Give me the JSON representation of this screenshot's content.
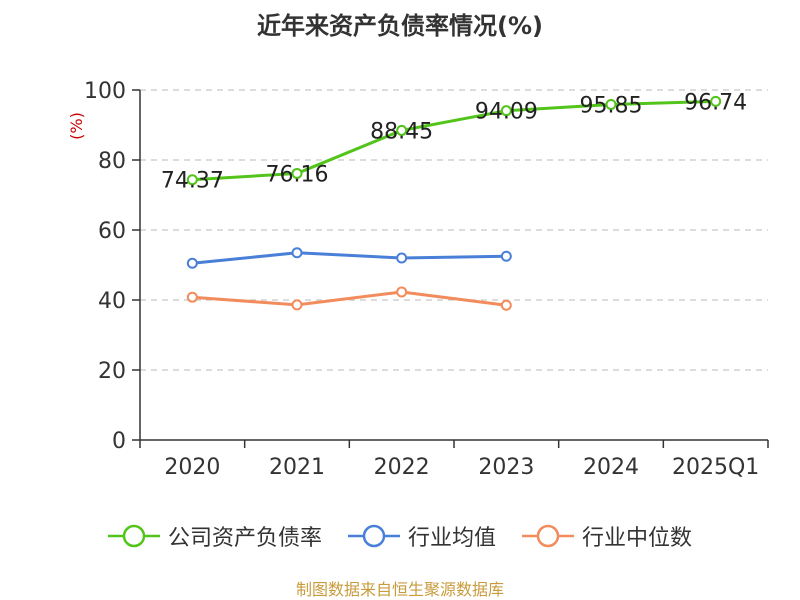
{
  "title": "近年来资产负债率情况(%)",
  "source_note": "制图数据来自恒生聚源数据库",
  "chart_data": {
    "type": "line",
    "title": "近年来资产负债率情况(%)",
    "ylabel": "(%)",
    "xlabel": "",
    "categories": [
      "2020",
      "2021",
      "2022",
      "2023",
      "2024",
      "2025Q1"
    ],
    "ylim": [
      0,
      100
    ],
    "yticks": [
      0,
      20,
      40,
      60,
      80,
      100
    ],
    "grid": "horizontal-dashed",
    "legend_position": "bottom",
    "series": [
      {
        "name": "公司资产负债率",
        "color": "#52c41a",
        "values": [
          74.37,
          76.16,
          88.45,
          94.09,
          95.85,
          96.74
        ],
        "labels": [
          "74.37",
          "76.16",
          "88.45",
          "94.09",
          "95.85",
          "96.74"
        ]
      },
      {
        "name": "行业均值",
        "color": "#4a7fd8",
        "values": [
          50.5,
          53.5,
          52.0,
          52.5,
          null,
          null
        ]
      },
      {
        "name": "行业中位数",
        "color": "#f28c5c",
        "values": [
          40.8,
          38.6,
          42.3,
          38.5,
          null,
          null
        ]
      }
    ]
  }
}
